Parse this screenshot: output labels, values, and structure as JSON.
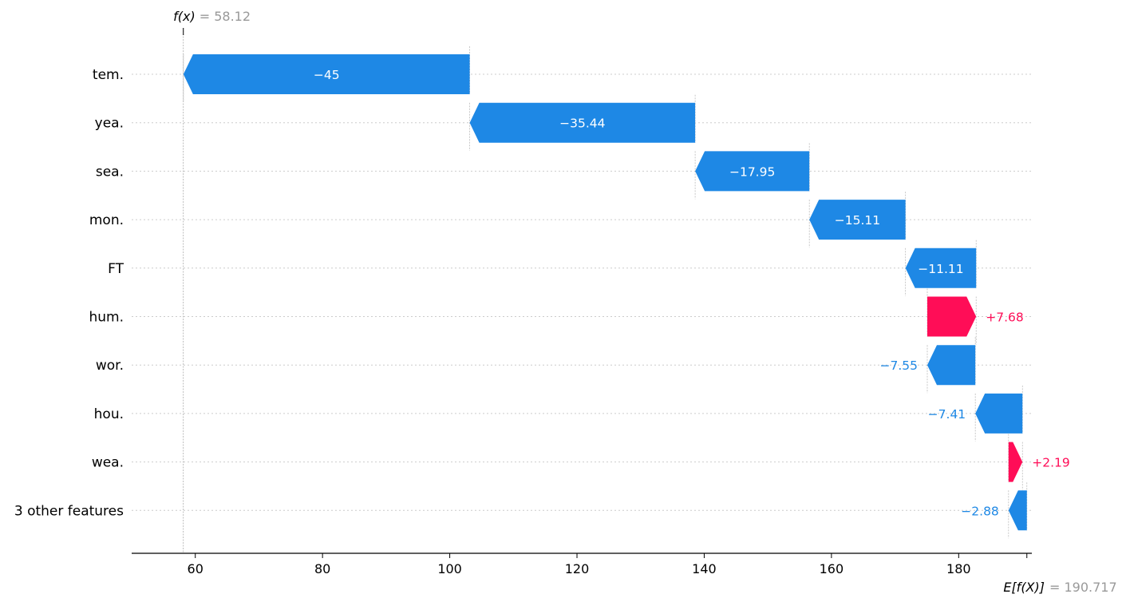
{
  "chart_data": {
    "type": "waterfall",
    "features": [
      "tem.",
      "yea.",
      "sea.",
      "mon.",
      "FT",
      "hum.",
      "wor.",
      "hou.",
      "wea.",
      "3 other features"
    ],
    "contributions": [
      -45,
      -35.44,
      -17.95,
      -15.11,
      -11.11,
      7.68,
      -7.55,
      -7.41,
      2.19,
      -2.88
    ],
    "value_labels": [
      "−45",
      "−35.44",
      "−17.95",
      "−15.11",
      "−11.11",
      "+7.68",
      "−7.55",
      "−7.41",
      "+2.19",
      "−2.88"
    ],
    "base_value": 190.717,
    "final_value": 58.12,
    "fx_name": "f(x)",
    "fx_value_text": "= 58.12",
    "ex_name": "E[f(X)]",
    "ex_value_text": "= 190.717",
    "xlim": [
      50,
      191.5
    ],
    "x_ticks": [
      60,
      80,
      100,
      120,
      140,
      160,
      180
    ],
    "x_tick_labels": [
      "60",
      "80",
      "100",
      "120",
      "140",
      "160",
      "180"
    ],
    "colors": {
      "negative": "#1e88e5",
      "positive": "#ff0d57",
      "annotation": "#999999",
      "gridline": "#cccccc"
    }
  }
}
